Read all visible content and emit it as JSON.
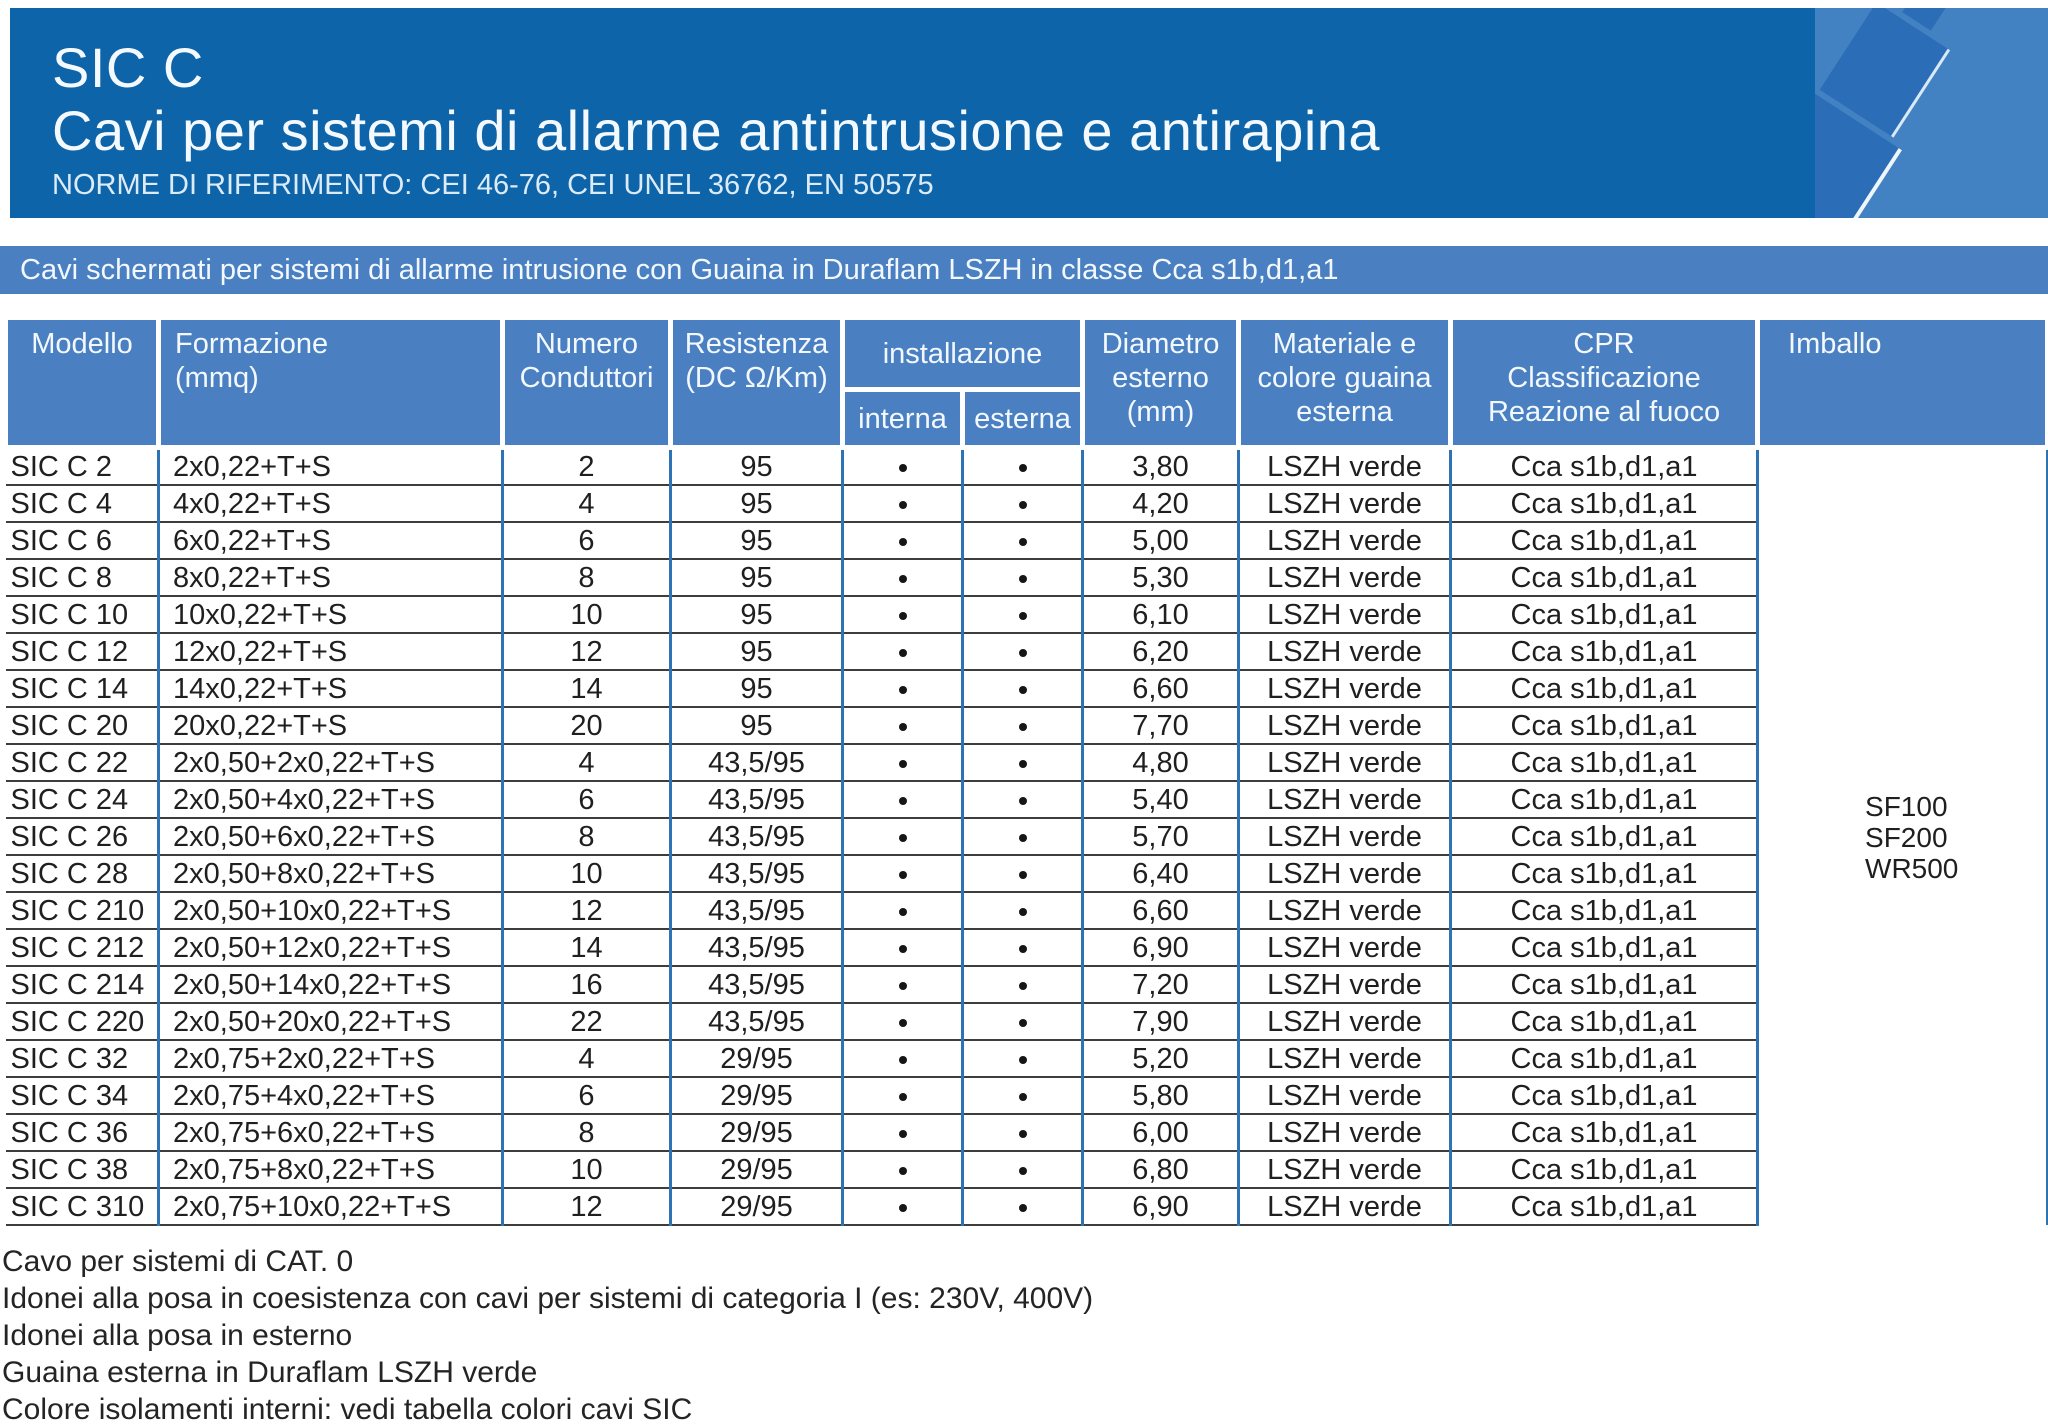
{
  "colors": {
    "header_band": "#0e64a9",
    "banner": "#4a80c1",
    "logo_box": "#4281c2",
    "cable": "#2b6db6",
    "divider_blue": "#2e74b5",
    "row_line": "#3d3d3d"
  },
  "header": {
    "product_code": "SIC C",
    "title": "Cavi per sistemi di allarme antintrusione e antirapina",
    "norms": "NORME DI RIFERIMENTO: CEI 46-76, CEI UNEL 36762, EN 50575"
  },
  "banner": {
    "text": "Cavi schermati per sistemi di allarme intrusione con Guaina in Duraflam LSZH in classe Cca s1b,d1,a1"
  },
  "table": {
    "headers": {
      "modello": "Modello",
      "formazione": "Formazione\n(mmq)",
      "numero": "Numero\nConduttori",
      "resistenza": "Resistenza\n(DC Ω/Km)",
      "installazione": "installazione",
      "interna": "interna",
      "esterna": "esterna",
      "diametro": "Diametro\nesterno\n(mm)",
      "materiale": "Materiale e\ncolore guaina\nesterna",
      "cpr": "CPR\nClassificazione\nReazione al fuoco",
      "imballo": "Imballo"
    },
    "rows": [
      {
        "modello": "SIC C 2",
        "formazione": "2x0,22+T+S",
        "conduttori": "2",
        "resistenza": "95",
        "interna": true,
        "esterna": true,
        "diametro": "3,80",
        "guaina": "LSZH verde",
        "cpr": "Cca s1b,d1,a1"
      },
      {
        "modello": "SIC C 4",
        "formazione": "4x0,22+T+S",
        "conduttori": "4",
        "resistenza": "95",
        "interna": true,
        "esterna": true,
        "diametro": "4,20",
        "guaina": "LSZH verde",
        "cpr": "Cca s1b,d1,a1"
      },
      {
        "modello": "SIC C 6",
        "formazione": "6x0,22+T+S",
        "conduttori": "6",
        "resistenza": "95",
        "interna": true,
        "esterna": true,
        "diametro": "5,00",
        "guaina": "LSZH verde",
        "cpr": "Cca s1b,d1,a1"
      },
      {
        "modello": "SIC C 8",
        "formazione": "8x0,22+T+S",
        "conduttori": "8",
        "resistenza": "95",
        "interna": true,
        "esterna": true,
        "diametro": "5,30",
        "guaina": "LSZH verde",
        "cpr": "Cca s1b,d1,a1"
      },
      {
        "modello": "SIC C 10",
        "formazione": "10x0,22+T+S",
        "conduttori": "10",
        "resistenza": "95",
        "interna": true,
        "esterna": true,
        "diametro": "6,10",
        "guaina": "LSZH verde",
        "cpr": "Cca s1b,d1,a1"
      },
      {
        "modello": "SIC C 12",
        "formazione": "12x0,22+T+S",
        "conduttori": "12",
        "resistenza": "95",
        "interna": true,
        "esterna": true,
        "diametro": "6,20",
        "guaina": "LSZH verde",
        "cpr": "Cca s1b,d1,a1"
      },
      {
        "modello": "SIC C 14",
        "formazione": "14x0,22+T+S",
        "conduttori": "14",
        "resistenza": "95",
        "interna": true,
        "esterna": true,
        "diametro": "6,60",
        "guaina": "LSZH verde",
        "cpr": "Cca s1b,d1,a1"
      },
      {
        "modello": "SIC C 20",
        "formazione": "20x0,22+T+S",
        "conduttori": "20",
        "resistenza": "95",
        "interna": true,
        "esterna": true,
        "diametro": "7,70",
        "guaina": "LSZH verde",
        "cpr": "Cca s1b,d1,a1"
      },
      {
        "modello": "SIC C 22",
        "formazione": "2x0,50+2x0,22+T+S",
        "conduttori": "4",
        "resistenza": "43,5/95",
        "interna": true,
        "esterna": true,
        "diametro": "4,80",
        "guaina": "LSZH verde",
        "cpr": "Cca s1b,d1,a1"
      },
      {
        "modello": "SIC C 24",
        "formazione": "2x0,50+4x0,22+T+S",
        "conduttori": "6",
        "resistenza": "43,5/95",
        "interna": true,
        "esterna": true,
        "diametro": "5,40",
        "guaina": "LSZH verde",
        "cpr": "Cca s1b,d1,a1"
      },
      {
        "modello": "SIC C 26",
        "formazione": "2x0,50+6x0,22+T+S",
        "conduttori": "8",
        "resistenza": "43,5/95",
        "interna": true,
        "esterna": true,
        "diametro": "5,70",
        "guaina": "LSZH verde",
        "cpr": "Cca s1b,d1,a1"
      },
      {
        "modello": "SIC C 28",
        "formazione": "2x0,50+8x0,22+T+S",
        "conduttori": "10",
        "resistenza": "43,5/95",
        "interna": true,
        "esterna": true,
        "diametro": "6,40",
        "guaina": "LSZH verde",
        "cpr": "Cca s1b,d1,a1"
      },
      {
        "modello": "SIC C 210",
        "formazione": "2x0,50+10x0,22+T+S",
        "conduttori": "12",
        "resistenza": "43,5/95",
        "interna": true,
        "esterna": true,
        "diametro": "6,60",
        "guaina": "LSZH verde",
        "cpr": "Cca s1b,d1,a1"
      },
      {
        "modello": "SIC C 212",
        "formazione": "2x0,50+12x0,22+T+S",
        "conduttori": "14",
        "resistenza": "43,5/95",
        "interna": true,
        "esterna": true,
        "diametro": "6,90",
        "guaina": "LSZH verde",
        "cpr": "Cca s1b,d1,a1"
      },
      {
        "modello": "SIC C 214",
        "formazione": "2x0,50+14x0,22+T+S",
        "conduttori": "16",
        "resistenza": "43,5/95",
        "interna": true,
        "esterna": true,
        "diametro": "7,20",
        "guaina": "LSZH verde",
        "cpr": "Cca s1b,d1,a1"
      },
      {
        "modello": "SIC C 220",
        "formazione": "2x0,50+20x0,22+T+S",
        "conduttori": "22",
        "resistenza": "43,5/95",
        "interna": true,
        "esterna": true,
        "diametro": "7,90",
        "guaina": "LSZH verde",
        "cpr": "Cca s1b,d1,a1"
      },
      {
        "modello": "SIC C 32",
        "formazione": "2x0,75+2x0,22+T+S",
        "conduttori": "4",
        "resistenza": "29/95",
        "interna": true,
        "esterna": true,
        "diametro": "5,20",
        "guaina": "LSZH verde",
        "cpr": "Cca s1b,d1,a1"
      },
      {
        "modello": "SIC C 34",
        "formazione": "2x0,75+4x0,22+T+S",
        "conduttori": "6",
        "resistenza": "29/95",
        "interna": true,
        "esterna": true,
        "diametro": "5,80",
        "guaina": "LSZH verde",
        "cpr": "Cca s1b,d1,a1"
      },
      {
        "modello": "SIC C 36",
        "formazione": "2x0,75+6x0,22+T+S",
        "conduttori": "8",
        "resistenza": "29/95",
        "interna": true,
        "esterna": true,
        "diametro": "6,00",
        "guaina": "LSZH verde",
        "cpr": "Cca s1b,d1,a1"
      },
      {
        "modello": "SIC C 38",
        "formazione": "2x0,75+8x0,22+T+S",
        "conduttori": "10",
        "resistenza": "29/95",
        "interna": true,
        "esterna": true,
        "diametro": "6,80",
        "guaina": "LSZH verde",
        "cpr": "Cca s1b,d1,a1"
      },
      {
        "modello": "SIC C 310",
        "formazione": "2x0,75+10x0,22+T+S",
        "conduttori": "12",
        "resistenza": "29/95",
        "interna": true,
        "esterna": true,
        "diametro": "6,90",
        "guaina": "LSZH verde",
        "cpr": "Cca s1b,d1,a1"
      }
    ],
    "imballo": [
      "SF100",
      "SF200",
      "WR500"
    ]
  },
  "notes": [
    "Cavo per sistemi di CAT. 0",
    "Idonei alla posa in coesistenza con cavi per sistemi di categoria I (es: 230V, 400V)",
    "Idonei alla posa in esterno",
    "Guaina esterna in Duraflam LSZH verde",
    "Colore isolamenti interni: vedi tabella colori cavi SIC"
  ]
}
